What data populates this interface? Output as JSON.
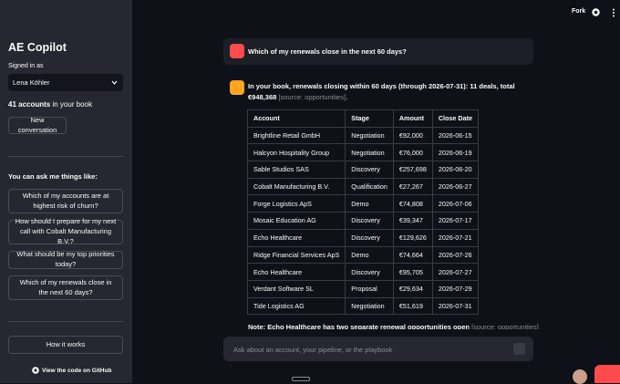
{
  "header": {
    "fork": "Fork"
  },
  "sidebar": {
    "title": "AE Copilot",
    "signed_in_label": "Signed in as",
    "user": "Lena Köhler",
    "accounts_count": "41 accounts",
    "accounts_suffix": "in your book",
    "new_conversation": "New conversation",
    "suggestions_title": "You can ask me things like:",
    "suggestions": [
      "Which of my accounts are at highest risk of churn?",
      "How should I prepare for my next call with Cobalt Manufacturing B.V.?",
      "What should be my top priorities today?",
      "Which of my renewals close in the next 60 days?"
    ],
    "how_it_works": "How it works",
    "github_link": "View the code on GitHub"
  },
  "chat": {
    "user_message": "Which of my renewals close in the next 60 days?",
    "assistant": {
      "summary": "In your book, renewals closing within 60 days (through 2026-07-31): 11 deals, total €948,368",
      "source": "[source: opportunities]",
      "end": ".",
      "table": {
        "columns": [
          "Account",
          "Stage",
          "Amount",
          "Close Date"
        ],
        "rows": [
          [
            "Brightline Retail GmbH",
            "Negotiation",
            "€92,000",
            "2026-06-15"
          ],
          [
            "Halcyon Hospitality Group",
            "Negotiation",
            "€76,000",
            "2026-06-19"
          ],
          [
            "Sable Studios SAS",
            "Discovery",
            "€257,698",
            "2026-06-20"
          ],
          [
            "Cobalt Manufacturing B.V.",
            "Qualification",
            "€27,267",
            "2026-06-27"
          ],
          [
            "Forge Logistics ApS",
            "Demo",
            "€74,808",
            "2026-07-06"
          ],
          [
            "Mosaic Education AG",
            "Discovery",
            "€39,347",
            "2026-07-17"
          ],
          [
            "Echo Healthcare",
            "Discovery",
            "€129,626",
            "2026-07-21"
          ],
          [
            "Ridge Financial Services ApS",
            "Demo",
            "€74,664",
            "2026-07-26"
          ],
          [
            "Echo Healthcare",
            "Discovery",
            "€95,705",
            "2026-07-27"
          ],
          [
            "Verdant Software SL",
            "Proposal",
            "€29,634",
            "2026-07-29"
          ],
          [
            "Tide Logistics AG",
            "Negotiation",
            "€51,619",
            "2026-07-31"
          ]
        ]
      },
      "note": "Note: Echo Healthcare has two separate renewal opportunities open",
      "note_source": "[source: opportunities]"
    },
    "input_placeholder": "Ask about an account, your pipeline, or the playbook"
  }
}
